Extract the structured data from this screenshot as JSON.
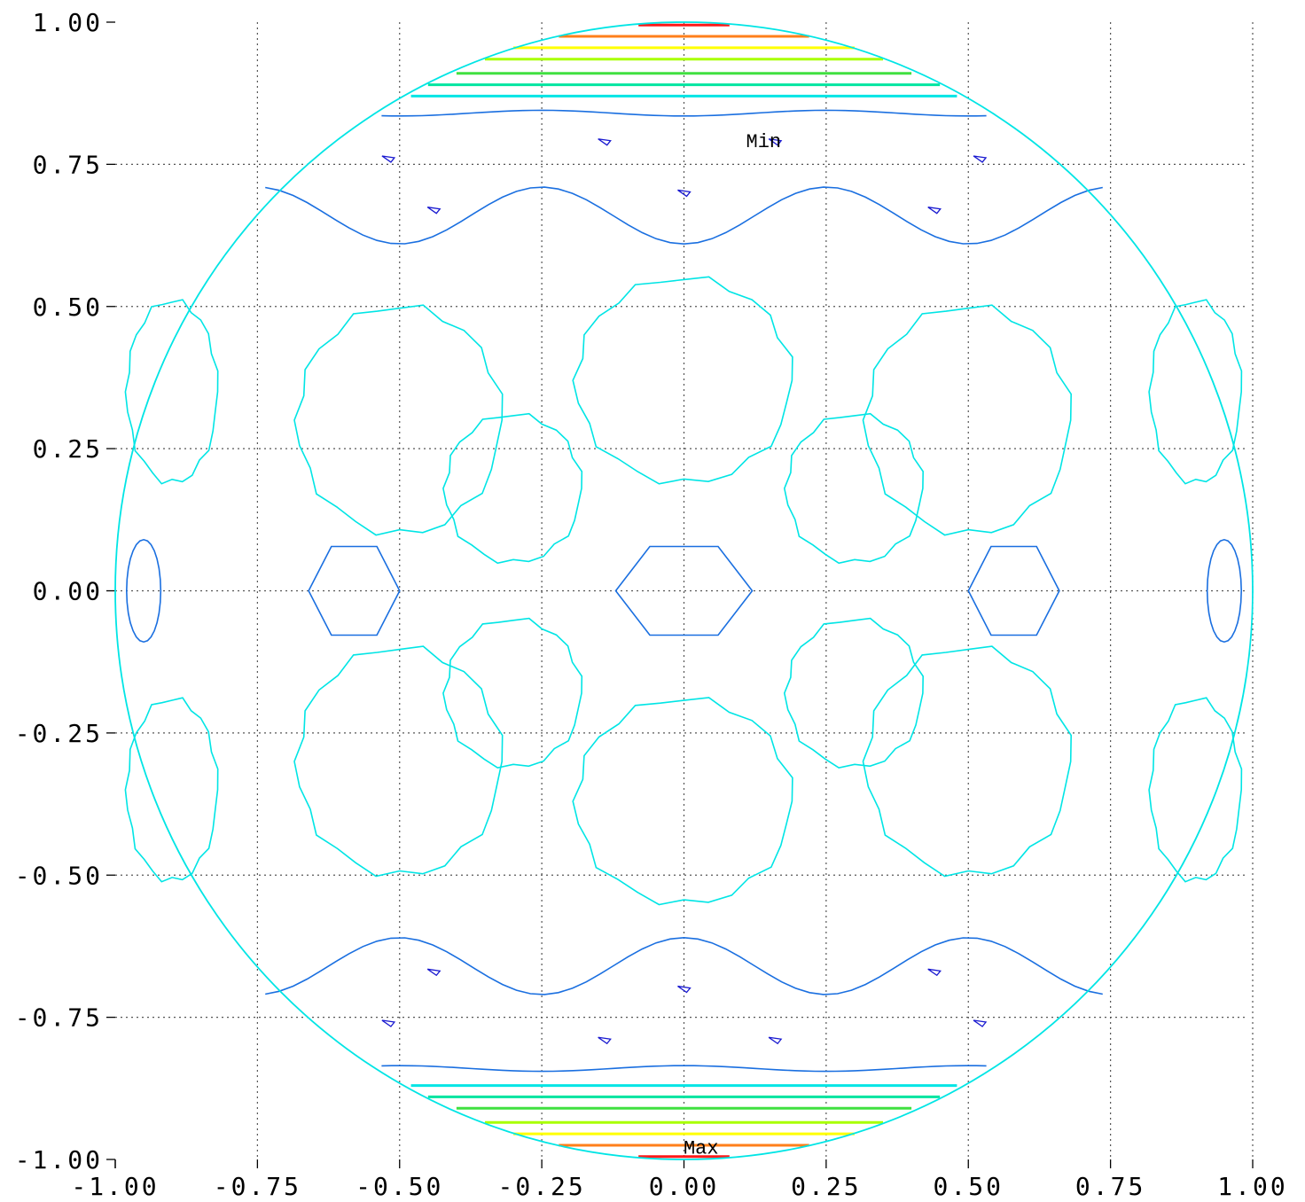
{
  "chart_data": {
    "type": "contour",
    "title": "",
    "xlabel": "",
    "ylabel": "",
    "xlim": [
      -1.0,
      1.0
    ],
    "ylim": [
      -1.0,
      1.0
    ],
    "grid": true,
    "grid_style": "dotted",
    "x_ticks": [
      "-1.00",
      "-0.75",
      "-0.50",
      "-0.25",
      "0.00",
      "0.25",
      "0.50",
      "0.75",
      "1.00"
    ],
    "y_ticks": [
      "1.00",
      "0.75",
      "0.50",
      "0.25",
      "0.00",
      "-0.25",
      "-0.50",
      "-0.75",
      "-1.00"
    ],
    "boundary": {
      "shape": "circle",
      "center": [
        0,
        0
      ],
      "radius": 1.0,
      "color": "#00e5e5"
    },
    "annotations": [
      {
        "text": "Min",
        "x": 0.14,
        "y": 0.78
      },
      {
        "text": "Max",
        "x": 0.03,
        "y": -0.99
      }
    ],
    "bands": [
      {
        "y": 0.995,
        "half_width": 0.08,
        "color": "#ff1a1a"
      },
      {
        "y": 0.975,
        "half_width": 0.22,
        "color": "#ff7f1a"
      },
      {
        "y": 0.955,
        "half_width": 0.3,
        "color": "#ffff00"
      },
      {
        "y": 0.935,
        "half_width": 0.35,
        "color": "#a8ff00"
      },
      {
        "y": 0.91,
        "half_width": 0.4,
        "color": "#40e040"
      },
      {
        "y": 0.89,
        "half_width": 0.45,
        "color": "#00e5a0"
      },
      {
        "y": 0.87,
        "half_width": 0.48,
        "color": "#00e5e5"
      },
      {
        "y": -0.995,
        "half_width": 0.08,
        "color": "#ff1a1a"
      },
      {
        "y": -0.975,
        "half_width": 0.22,
        "color": "#ff7f1a"
      },
      {
        "y": -0.955,
        "half_width": 0.3,
        "color": "#ffff00"
      },
      {
        "y": -0.935,
        "half_width": 0.35,
        "color": "#a8ff00"
      },
      {
        "y": -0.91,
        "half_width": 0.4,
        "color": "#40e040"
      },
      {
        "y": -0.89,
        "half_width": 0.45,
        "color": "#00e5a0"
      },
      {
        "y": -0.87,
        "half_width": 0.48,
        "color": "#00e5e5"
      }
    ],
    "contours": [
      {
        "name": "ring-top-center",
        "color": "#00e5e5",
        "center": [
          0.0,
          0.37
        ],
        "rx": 0.19,
        "ry": 0.18
      },
      {
        "name": "ring-bottom-center",
        "color": "#00e5e5",
        "center": [
          0.0,
          -0.37
        ],
        "rx": 0.19,
        "ry": 0.18
      },
      {
        "name": "ring-upper-left",
        "color": "#00e5e5",
        "center": [
          -0.3,
          0.18
        ],
        "rx": 0.12,
        "ry": 0.13
      },
      {
        "name": "ring-upper-right",
        "color": "#00e5e5",
        "center": [
          0.3,
          0.18
        ],
        "rx": 0.12,
        "ry": 0.13
      },
      {
        "name": "ring-lower-left",
        "color": "#00e5e5",
        "center": [
          -0.3,
          -0.18
        ],
        "rx": 0.12,
        "ry": 0.13
      },
      {
        "name": "ring-lower-right",
        "color": "#00e5e5",
        "center": [
          0.3,
          -0.18
        ],
        "rx": 0.12,
        "ry": 0.13
      },
      {
        "name": "ring-left-upper-lobe",
        "color": "#00e5e5",
        "center": [
          -0.5,
          0.3
        ],
        "rx": 0.18,
        "ry": 0.2
      },
      {
        "name": "ring-right-upper-lobe",
        "color": "#00e5e5",
        "center": [
          0.5,
          0.3
        ],
        "rx": 0.18,
        "ry": 0.2
      },
      {
        "name": "ring-left-lower-lobe",
        "color": "#00e5e5",
        "center": [
          -0.5,
          -0.3
        ],
        "rx": 0.18,
        "ry": 0.2
      },
      {
        "name": "ring-right-lower-lobe",
        "color": "#00e5e5",
        "center": [
          0.5,
          -0.3
        ],
        "rx": 0.18,
        "ry": 0.2
      },
      {
        "name": "ring-far-left-upper",
        "color": "#00e5e5",
        "center": [
          -0.9,
          0.35
        ],
        "rx": 0.08,
        "ry": 0.16
      },
      {
        "name": "ring-far-right-upper",
        "color": "#00e5e5",
        "center": [
          0.9,
          0.35
        ],
        "rx": 0.08,
        "ry": 0.16
      },
      {
        "name": "ring-far-left-lower",
        "color": "#00e5e5",
        "center": [
          -0.9,
          -0.35
        ],
        "rx": 0.08,
        "ry": 0.16
      },
      {
        "name": "ring-far-right-lower",
        "color": "#00e5e5",
        "center": [
          0.9,
          -0.35
        ],
        "rx": 0.08,
        "ry": 0.16
      },
      {
        "name": "hex-center",
        "color": "#1a6fe0",
        "center": [
          0.0,
          0.0
        ],
        "rx": 0.12,
        "ry": 0.09
      },
      {
        "name": "hex-left",
        "color": "#1a6fe0",
        "center": [
          -0.58,
          0.0
        ],
        "rx": 0.08,
        "ry": 0.09
      },
      {
        "name": "hex-right",
        "color": "#1a6fe0",
        "center": [
          0.58,
          0.0
        ],
        "rx": 0.08,
        "ry": 0.09
      },
      {
        "name": "oval-far-left",
        "color": "#1a6fe0",
        "center": [
          -0.95,
          0.0
        ],
        "rx": 0.03,
        "ry": 0.09
      },
      {
        "name": "oval-far-right",
        "color": "#1a6fe0",
        "center": [
          0.95,
          0.0
        ],
        "rx": 0.03,
        "ry": 0.09
      }
    ],
    "wavy_bands": [
      {
        "name": "blue-upper-wave",
        "color": "#1a6fe0",
        "y": 0.66,
        "amplitude": 0.05
      },
      {
        "name": "blue-lower-wave",
        "color": "#1a6fe0",
        "y": -0.66,
        "amplitude": 0.05
      },
      {
        "name": "blue-upper-cap",
        "color": "#1a6fe0",
        "y": 0.84,
        "amplitude": 0.005
      },
      {
        "name": "blue-lower-cap",
        "color": "#1a6fe0",
        "y": -0.84,
        "amplitude": 0.005
      }
    ],
    "small_marks": [
      {
        "x": -0.52,
        "y": 0.76
      },
      {
        "x": 0.52,
        "y": 0.76
      },
      {
        "x": -0.14,
        "y": 0.79
      },
      {
        "x": 0.16,
        "y": 0.79
      },
      {
        "x": -0.44,
        "y": 0.67
      },
      {
        "x": 0.44,
        "y": 0.67
      },
      {
        "x": 0.0,
        "y": 0.7
      },
      {
        "x": -0.52,
        "y": -0.76
      },
      {
        "x": 0.52,
        "y": -0.76
      },
      {
        "x": -0.14,
        "y": -0.79
      },
      {
        "x": 0.16,
        "y": -0.79
      },
      {
        "x": -0.44,
        "y": -0.67
      },
      {
        "x": 0.44,
        "y": -0.67
      },
      {
        "x": 0.0,
        "y": -0.7
      }
    ]
  }
}
